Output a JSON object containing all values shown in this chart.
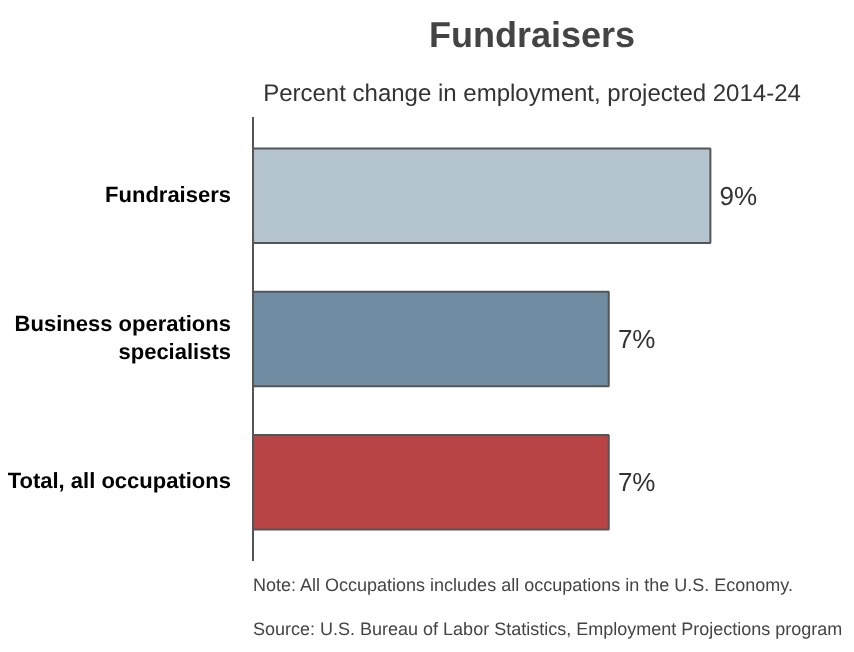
{
  "chart_data": {
    "type": "bar",
    "orientation": "horizontal",
    "title": "Fundraisers",
    "subtitle": "Percent change in employment, projected 2014-24",
    "categories": [
      "Fundraisers",
      "Business operations specialists",
      "Total, all occupations"
    ],
    "values": [
      9,
      7,
      7
    ],
    "colors": [
      "#b3c4cf",
      "#6f8ca2",
      "#b94446"
    ],
    "value_labels": [
      "9%",
      "7%",
      "7%"
    ],
    "annotations": [
      "Note: All Occupations includes all occupations in the U.S. Economy.",
      "Source: U.S. Bureau of Labor Statistics, Employment Projections program"
    ]
  }
}
